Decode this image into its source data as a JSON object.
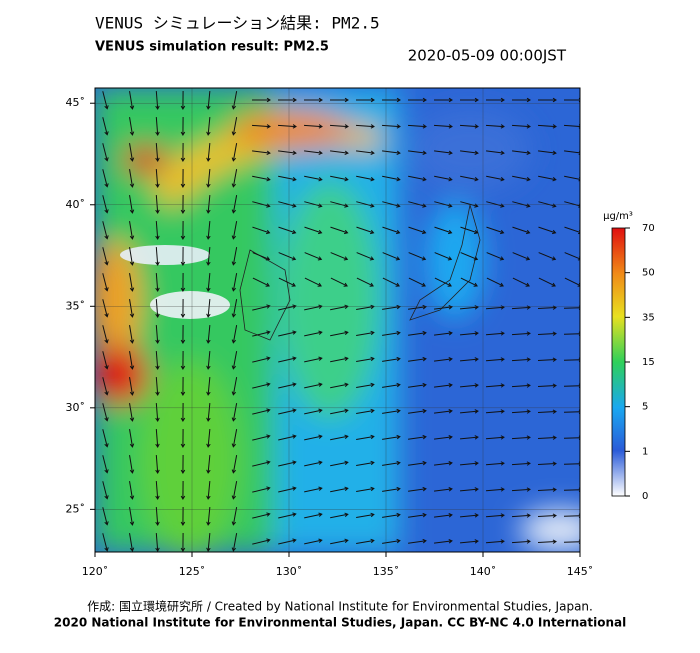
{
  "header": {
    "title_jp": "VENUS シミュレーション結果: PM2.5",
    "title_en": "VENUS simulation result: PM2.5",
    "timestamp": "2020-05-09 00:00JST"
  },
  "map": {
    "lonlim": [
      120,
      145.0
    ],
    "latlim": [
      22.9,
      45.75
    ],
    "lonticks": [
      {
        "value": 120,
        "label": "120˚"
      },
      {
        "value": 125,
        "label": "125˚"
      },
      {
        "value": 130,
        "label": "130˚"
      },
      {
        "value": 135,
        "label": "135˚"
      },
      {
        "value": 140,
        "label": "140˚"
      },
      {
        "value": 145,
        "label": "145˚"
      }
    ],
    "latticks": [
      {
        "value": 25,
        "label": "25˚"
      },
      {
        "value": 30,
        "label": "30˚"
      },
      {
        "value": 35,
        "label": "35˚"
      },
      {
        "value": 40,
        "label": "40˚"
      },
      {
        "value": 45,
        "label": "45˚"
      }
    ]
  },
  "colorbar": {
    "unit": "μg/m³",
    "ticks": [
      0,
      1,
      5,
      15,
      35,
      50,
      70
    ]
  },
  "footer": {
    "credit": "作成: 国立環境研究所 / Created by National Institute for Environmental Studies, Japan.",
    "copyright": "2020 National Institute for Environmental Studies, Japan. CC BY-NC 4.0 International"
  }
}
